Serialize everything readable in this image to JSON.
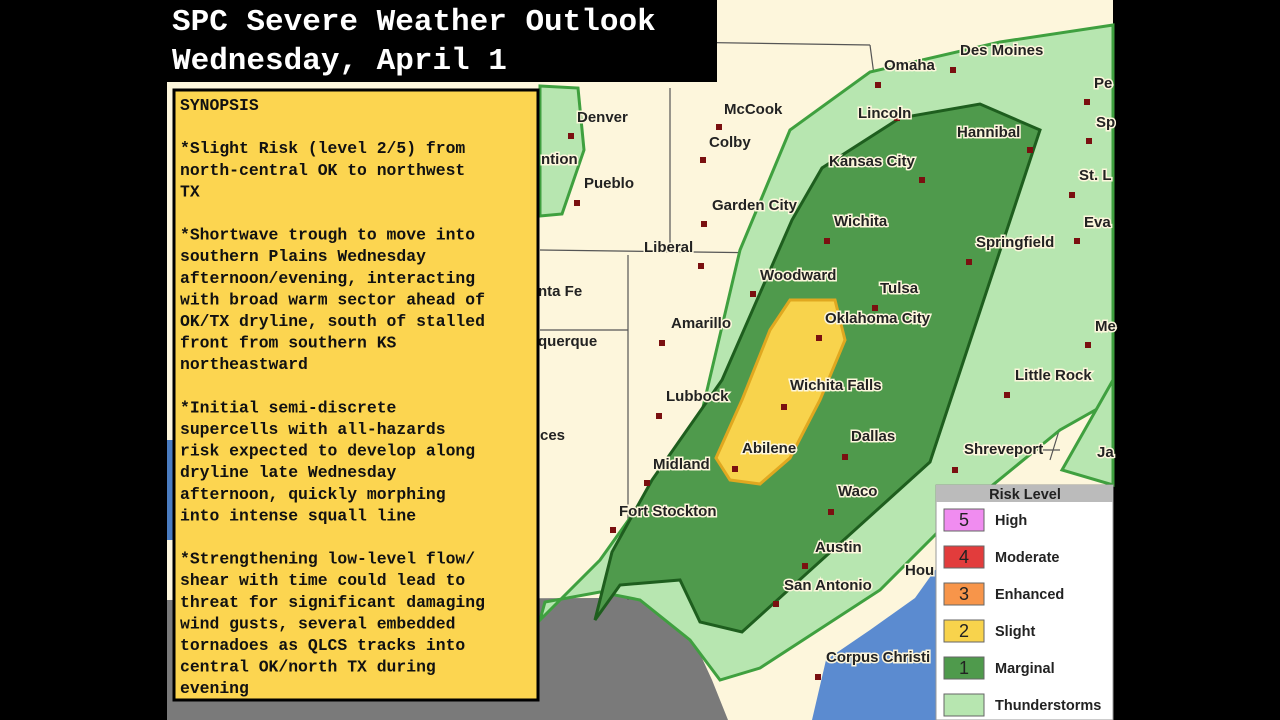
{
  "header": {
    "line1": "SPC Severe Weather Outlook",
    "line2": "Wednesday, April 1"
  },
  "synopsis": {
    "heading": "SYNOPSIS",
    "paragraphs": [
      [
        "*Slight Risk (level 2/5) from",
        "north-central OK to northwest",
        "TX"
      ],
      [
        "*Shortwave trough to move into",
        "southern Plains Wednesday",
        "afternoon/evening, interacting",
        "with broad warm sector ahead of",
        "OK/TX dryline, south of stalled",
        "front from southern KS",
        "northeastward"
      ],
      [
        "*Initial semi-discrete",
        "supercells with all-hazards",
        "risk expected to develop along",
        "dryline late Wednesday",
        "afternoon, quickly morphing",
        "into intense squall line"
      ],
      [
        "*Strengthening low-level flow/",
        "shear with time could lead to",
        "threat for significant damaging",
        "wind gusts, several embedded",
        "tornadoes as QLCS tracks into",
        "central OK/north TX during",
        "evening"
      ]
    ]
  },
  "cities": [
    "Denver",
    "McCook",
    "Colby",
    "Pueblo",
    "Garden City",
    "Liberal",
    "Omaha",
    "Des Moines",
    "Lincoln",
    "Hannibal",
    "Kansas City",
    "Wichita",
    "Springfield",
    "Woodward",
    "Tulsa",
    "Oklahoma City",
    "Amarillo",
    "Wichita Falls",
    "Lubbock",
    "Dallas",
    "Abilene",
    "Midland",
    "Waco",
    "Fort Stockton",
    "Shreveport",
    "Little Rock",
    "Austin",
    "San Antonio",
    "Corpus Christi",
    "Hou",
    "ntion",
    "nta Fe",
    "querque",
    "ces",
    "Pe",
    "Sp",
    "St. L",
    "Eva",
    "Me",
    "Ja"
  ],
  "legend": {
    "title": "Risk Level",
    "items": [
      {
        "number": 5,
        "label": "High",
        "color": "#f08cf0"
      },
      {
        "number": 4,
        "label": "Moderate",
        "color": "#e23c3c"
      },
      {
        "number": 3,
        "label": "Enhanced",
        "color": "#f7954a"
      },
      {
        "number": 2,
        "label": "Slight",
        "color": "#f8d34c"
      },
      {
        "number": 1,
        "label": "Marginal",
        "color": "#4f9a4c"
      },
      {
        "label": "Thunderstorms",
        "color": "#b7e6b0"
      }
    ]
  }
}
